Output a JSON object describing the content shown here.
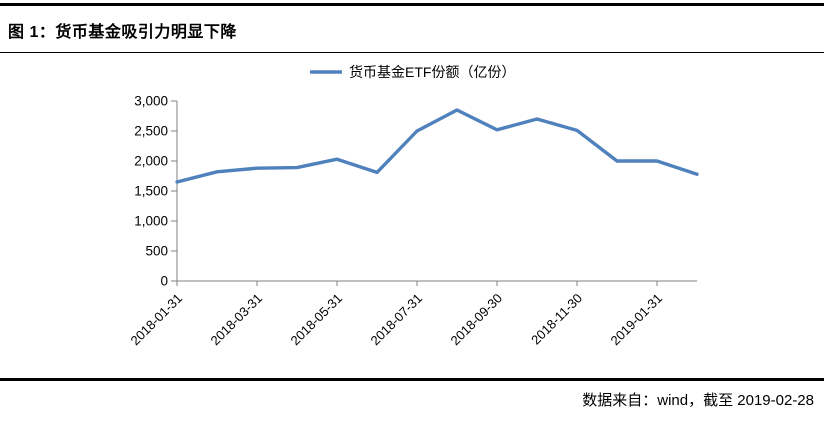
{
  "header": {
    "title": "图 1：货币基金吸引力明显下降"
  },
  "footer": {
    "source_note": "数据来自：wind，截至 2019-02-28"
  },
  "chart_data": {
    "type": "line",
    "title": "",
    "xlabel": "",
    "ylabel": "",
    "legend": {
      "label": "货币基金ETF份额（亿份）",
      "position": "top-center"
    },
    "x": [
      "2018-01-31",
      "2018-02-28",
      "2018-03-31",
      "2018-04-30",
      "2018-05-31",
      "2018-06-30",
      "2018-07-31",
      "2018-08-31",
      "2018-09-30",
      "2018-10-31",
      "2018-11-30",
      "2018-12-31",
      "2019-01-31",
      "2019-02-28"
    ],
    "x_labels_shown": [
      "2018-01-31",
      "2018-03-31",
      "2018-05-31",
      "2018-07-31",
      "2018-09-30",
      "2018-11-30",
      "2019-01-31"
    ],
    "series": [
      {
        "name": "货币基金ETF份额（亿份）",
        "values": [
          1650,
          1820,
          1880,
          1890,
          2030,
          1810,
          2500,
          2850,
          2520,
          2700,
          2510,
          2000,
          2000,
          1780
        ]
      }
    ],
    "ylim": [
      0,
      3000
    ],
    "y_tick_step": 500,
    "y_tick_labels": [
      "0",
      "500",
      "1,000",
      "1,500",
      "2,000",
      "2,500",
      "3,000"
    ],
    "grid": false,
    "colors": {
      "line": "#4F81BD",
      "axis": "#808080",
      "text": "#000000"
    }
  }
}
